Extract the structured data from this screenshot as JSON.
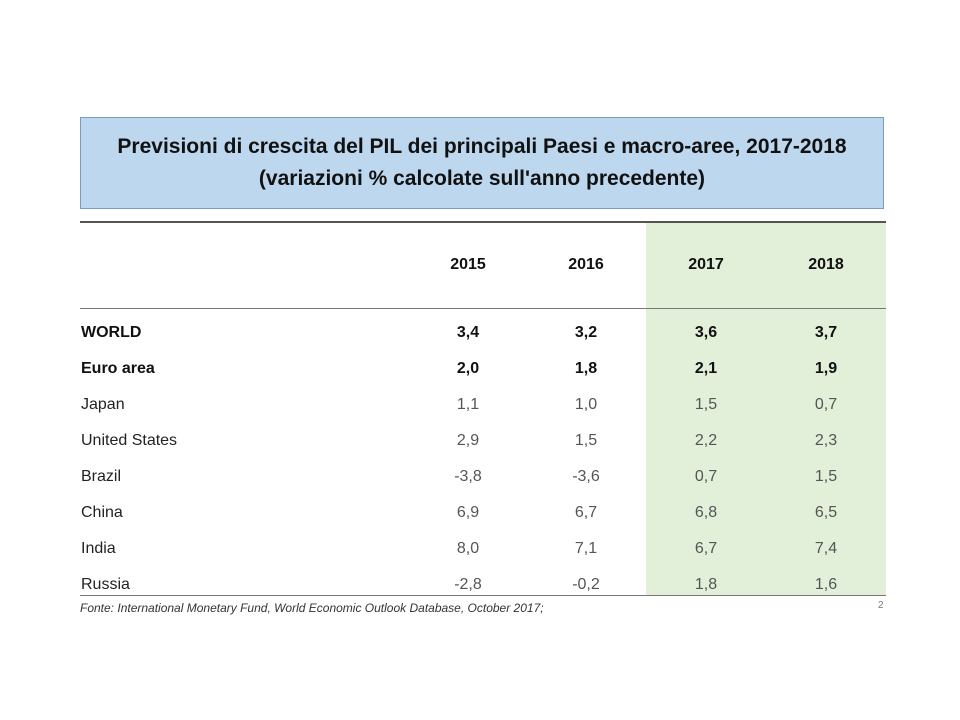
{
  "title": {
    "line1": "Previsioni di crescita del PIL dei principali Paesi e macro-aree, 2017-2018",
    "line2": "(variazioni % calcolate sull'anno precedente)"
  },
  "columns": [
    "2015",
    "2016",
    "2017",
    "2018"
  ],
  "rows": [
    {
      "label": "WORLD",
      "bold": true,
      "values": [
        "3,4",
        "3,2",
        "3,6",
        "3,7"
      ]
    },
    {
      "label": "Euro area",
      "bold": true,
      "values": [
        "2,0",
        "1,8",
        "2,1",
        "1,9"
      ]
    },
    {
      "label": "Japan",
      "bold": false,
      "values": [
        "1,1",
        "1,0",
        "1,5",
        "0,7"
      ]
    },
    {
      "label": "United States",
      "bold": false,
      "values": [
        "2,9",
        "1,5",
        "2,2",
        "2,3"
      ]
    },
    {
      "label": "Brazil",
      "bold": false,
      "values": [
        "-3,8",
        "-3,6",
        "0,7",
        "1,5"
      ]
    },
    {
      "label": "China",
      "bold": false,
      "values": [
        "6,9",
        "6,7",
        "6,8",
        "6,5"
      ]
    },
    {
      "label": "India",
      "bold": false,
      "values": [
        "8,0",
        "7,1",
        "6,7",
        "7,4"
      ]
    },
    {
      "label": "Russia",
      "bold": false,
      "values": [
        "-2,8",
        "-0,2",
        "1,8",
        "1,6"
      ]
    }
  ],
  "source": "Fonte: International Monetary Fund, World Economic Outlook Database, October 2017;",
  "page_number": "2",
  "colors": {
    "title_background": "#bdd7ee",
    "forecast_highlight": "#e2efd9"
  }
}
